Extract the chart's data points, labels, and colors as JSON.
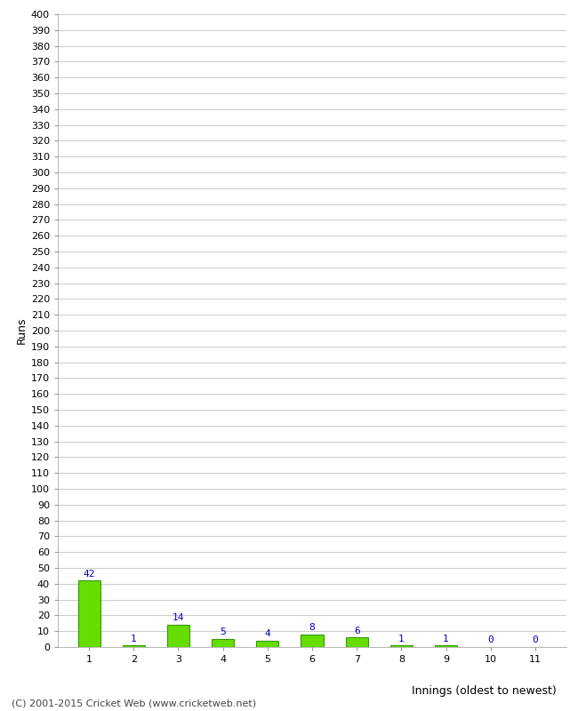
{
  "categories": [
    "1",
    "2",
    "3",
    "4",
    "5",
    "6",
    "7",
    "8",
    "9",
    "10",
    "11"
  ],
  "values": [
    42,
    1,
    14,
    5,
    4,
    8,
    6,
    1,
    1,
    0,
    0
  ],
  "bar_color": "#66dd00",
  "bar_edge_color": "#339900",
  "ylabel": "Runs",
  "xlabel": "Innings (oldest to newest)",
  "ylim": [
    0,
    400
  ],
  "ytick_step": 10,
  "grid_color": "#cccccc",
  "label_color": "#0000cc",
  "footer": "(C) 2001-2015 Cricket Web (www.cricketweb.net)",
  "background_color": "#ffffff",
  "plot_bg_color": "#ffffff"
}
